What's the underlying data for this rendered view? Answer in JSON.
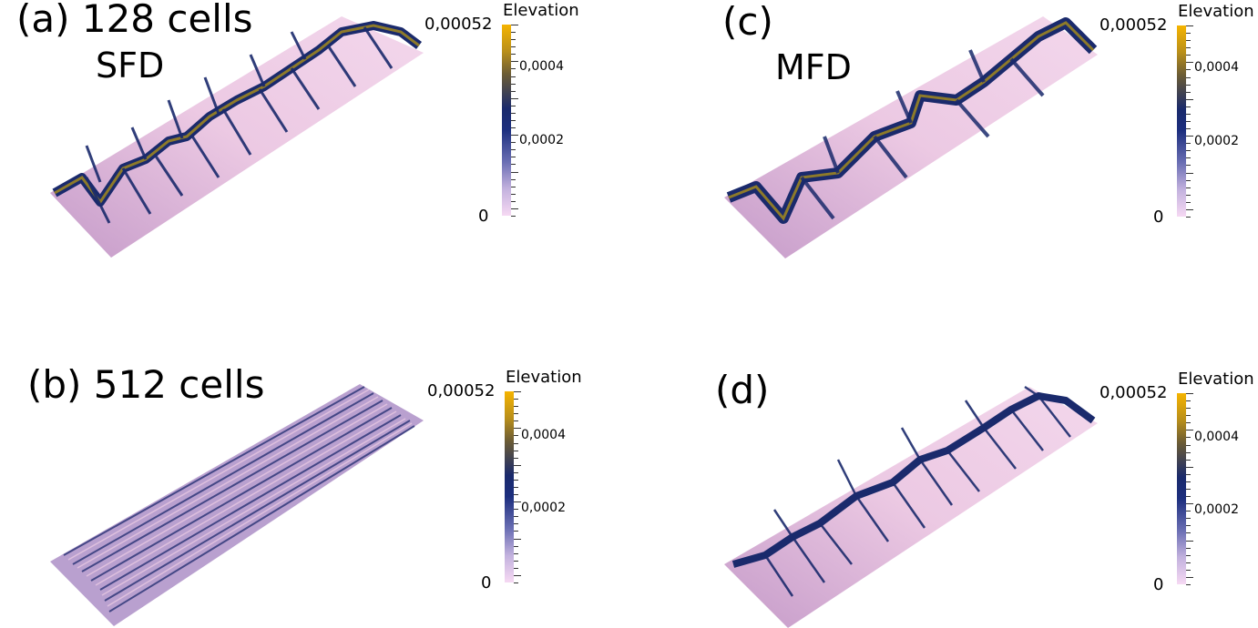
{
  "panels": {
    "a": {
      "label": "(a)  128 cells",
      "method": "SFD"
    },
    "b": {
      "label": "(b) 512 cells"
    },
    "c": {
      "label": "(c)",
      "method": "MFD"
    },
    "d": {
      "label": "(d)"
    }
  },
  "colorbar": {
    "title": "Elevation",
    "max_label": "0,00052",
    "mid_labels": [
      "0,0004",
      "0,0002"
    ],
    "min_label": "0",
    "colors": [
      "#f5b400",
      "#1a2a6c",
      "#f6d9f3"
    ]
  },
  "terrain_colors": {
    "low": "#f1cfe7",
    "mid": "#1a2a6c",
    "high": "#8d7a2a"
  }
}
